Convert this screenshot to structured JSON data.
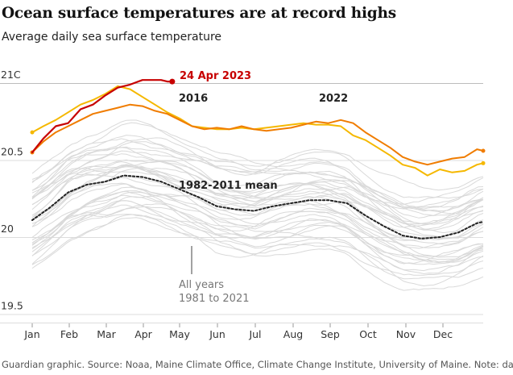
{
  "title": "Ocean surface temperatures are at record highs",
  "subtitle": "Average daily sea surface temperature",
  "footer": "Guardian graphic. Source: Noaa, Maine Climate Office, Climate Change Institute, University of Maine. Note: data covers",
  "chart_data": {
    "type": "line",
    "x_ticks": [
      "Jan",
      "Feb",
      "Mar",
      "Apr",
      "May",
      "Jun",
      "Jul",
      "Aug",
      "Sep",
      "Oct",
      "Nov",
      "Dec"
    ],
    "y_ticks": [
      "21C",
      "20.5",
      "20",
      "19.5"
    ],
    "y_tick_values": [
      21,
      20.5,
      20,
      19.5
    ],
    "ylim": [
      19.5,
      21.05
    ],
    "grid": "horizontal",
    "x_unit": "day of year",
    "annotations": {
      "record": "24 Apr 2023",
      "y2016": "2016",
      "y2022": "2022",
      "mean": "1982-2011 mean",
      "all_years_line1": "All years",
      "all_years_line2": "1981 to 2021"
    },
    "colors": {
      "y2023": "#c70000",
      "y2016": "#f5b800",
      "y2022": "#f07c00",
      "mean": "#222222",
      "other_years": "#d9d9d9",
      "grid": "#dcdcdc"
    },
    "series": [
      {
        "name": "2023",
        "x": [
          1,
          10,
          20,
          30,
          40,
          50,
          60,
          70,
          80,
          90,
          100,
          105,
          110,
          114
        ],
        "y": [
          20.55,
          20.64,
          20.72,
          20.74,
          20.83,
          20.86,
          20.92,
          20.97,
          20.99,
          21.02,
          21.02,
          21.02,
          21.01,
          21.01
        ]
      },
      {
        "name": "2016",
        "x": [
          1,
          10,
          20,
          30,
          40,
          50,
          60,
          70,
          80,
          90,
          100,
          110,
          120,
          130,
          140,
          150,
          160,
          170,
          180,
          190,
          200,
          210,
          220,
          230,
          240,
          250,
          260,
          270,
          280,
          290,
          300,
          310,
          320,
          330,
          340,
          350,
          360,
          365
        ],
        "y": [
          20.68,
          20.72,
          20.76,
          20.81,
          20.86,
          20.89,
          20.93,
          20.98,
          20.96,
          20.91,
          20.86,
          20.81,
          20.77,
          20.72,
          20.71,
          20.7,
          20.7,
          20.71,
          20.7,
          20.71,
          20.72,
          20.73,
          20.74,
          20.73,
          20.73,
          20.72,
          20.66,
          20.63,
          20.58,
          20.53,
          20.47,
          20.45,
          20.4,
          20.44,
          20.42,
          20.43,
          20.47,
          20.48
        ]
      },
      {
        "name": "2022",
        "x": [
          1,
          10,
          20,
          30,
          40,
          50,
          60,
          70,
          80,
          90,
          100,
          110,
          120,
          130,
          140,
          150,
          160,
          170,
          180,
          190,
          200,
          210,
          220,
          230,
          240,
          250,
          260,
          270,
          280,
          290,
          300,
          310,
          320,
          330,
          340,
          350,
          360,
          365
        ],
        "y": [
          20.55,
          20.62,
          20.68,
          20.72,
          20.76,
          20.8,
          20.82,
          20.84,
          20.86,
          20.85,
          20.82,
          20.8,
          20.76,
          20.72,
          20.7,
          20.71,
          20.7,
          20.72,
          20.7,
          20.69,
          20.7,
          20.71,
          20.73,
          20.75,
          20.74,
          20.76,
          20.74,
          20.68,
          20.63,
          20.58,
          20.52,
          20.49,
          20.47,
          20.49,
          20.51,
          20.52,
          20.57,
          20.56
        ]
      },
      {
        "name": "1982-2011 mean",
        "x": [
          1,
          15,
          30,
          45,
          60,
          75,
          90,
          105,
          120,
          135,
          150,
          165,
          180,
          195,
          210,
          225,
          240,
          255,
          270,
          285,
          300,
          315,
          330,
          345,
          360,
          365
        ],
        "y": [
          20.11,
          20.19,
          20.29,
          20.34,
          20.36,
          20.4,
          20.39,
          20.36,
          20.31,
          20.26,
          20.2,
          20.18,
          20.17,
          20.2,
          20.22,
          20.24,
          20.24,
          20.22,
          20.14,
          20.07,
          20.01,
          19.99,
          20.0,
          20.03,
          20.09,
          20.1
        ]
      }
    ]
  }
}
